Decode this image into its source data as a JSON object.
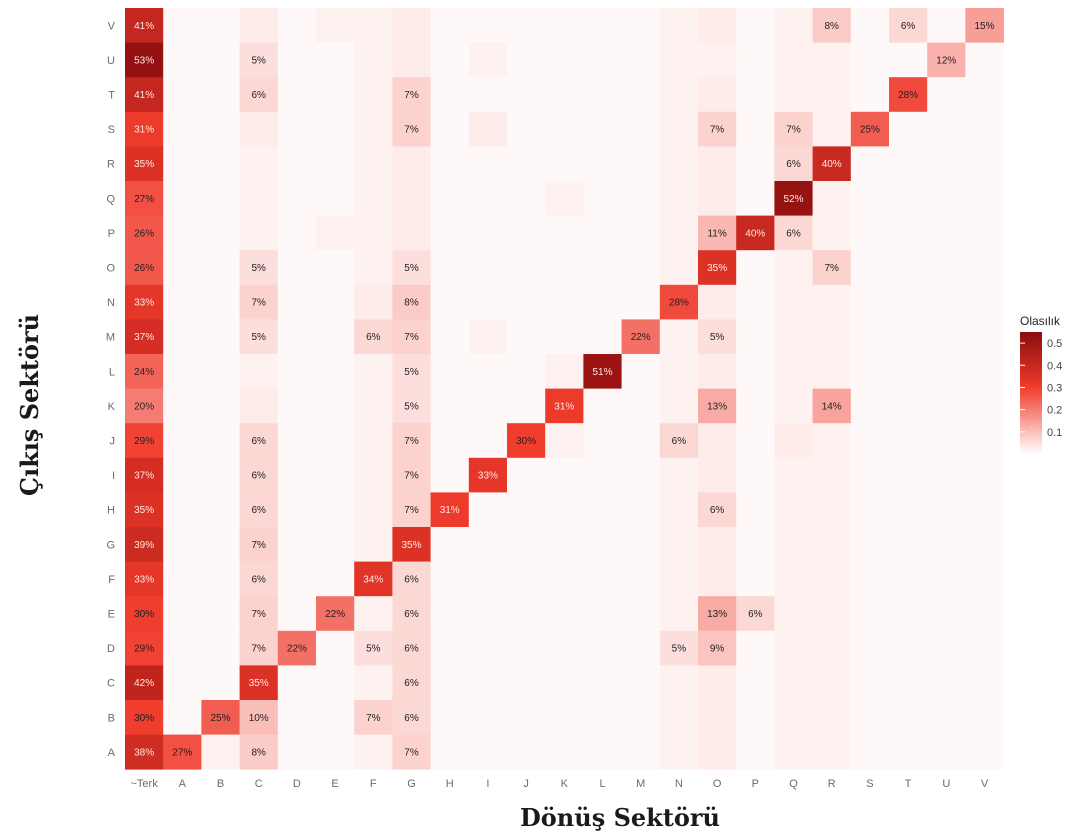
{
  "chart_data": {
    "type": "heatmap",
    "xlabel": "Dönüş Sektörü",
    "ylabel": "Çıkış Sektörü",
    "x_categories": [
      "~Terk",
      "A",
      "B",
      "C",
      "D",
      "E",
      "F",
      "G",
      "H",
      "I",
      "J",
      "K",
      "L",
      "M",
      "N",
      "O",
      "P",
      "Q",
      "R",
      "S",
      "T",
      "U",
      "V"
    ],
    "y_categories": [
      "A",
      "B",
      "C",
      "D",
      "E",
      "F",
      "G",
      "H",
      "I",
      "J",
      "K",
      "L",
      "M",
      "N",
      "O",
      "P",
      "Q",
      "R",
      "S",
      "T",
      "U",
      "V"
    ],
    "color_range": [
      0,
      0.55
    ],
    "colors": {
      "low": "#ffffff",
      "mid": "#ef3b2c",
      "high": "#8b0d0d"
    },
    "legend": {
      "title": "Olasılık",
      "ticks": [
        "0.1",
        "0.2",
        "0.3",
        "0.4",
        "0.5"
      ],
      "tick_values": [
        0.1,
        0.2,
        0.3,
        0.4,
        0.5
      ],
      "position": "right"
    },
    "values": [
      [
        0.38,
        0.27,
        0.02,
        0.08,
        0.01,
        0.01,
        0.02,
        0.07,
        0.01,
        0.01,
        0.01,
        0.01,
        0.01,
        0.01,
        0.02,
        0.03,
        0.01,
        0.02,
        0.02,
        0.01,
        0.01,
        0.01,
        0.01
      ],
      [
        0.3,
        0.01,
        0.25,
        0.1,
        0.01,
        0.01,
        0.07,
        0.06,
        0.01,
        0.01,
        0.01,
        0.01,
        0.01,
        0.01,
        0.02,
        0.03,
        0.01,
        0.02,
        0.02,
        0.01,
        0.01,
        0.01,
        0.01
      ],
      [
        0.42,
        0.01,
        0.01,
        0.35,
        0.01,
        0.01,
        0.02,
        0.06,
        0.01,
        0.01,
        0.01,
        0.01,
        0.01,
        0.01,
        0.02,
        0.03,
        0.01,
        0.02,
        0.02,
        0.01,
        0.01,
        0.01,
        0.01
      ],
      [
        0.29,
        0.01,
        0.01,
        0.07,
        0.22,
        0.01,
        0.05,
        0.06,
        0.01,
        0.01,
        0.01,
        0.01,
        0.01,
        0.01,
        0.05,
        0.09,
        0.01,
        0.02,
        0.02,
        0.01,
        0.01,
        0.01,
        0.01
      ],
      [
        0.3,
        0.01,
        0.01,
        0.07,
        0.01,
        0.22,
        0.02,
        0.06,
        0.01,
        0.01,
        0.01,
        0.01,
        0.01,
        0.01,
        0.02,
        0.13,
        0.06,
        0.02,
        0.02,
        0.01,
        0.01,
        0.01,
        0.01
      ],
      [
        0.33,
        0.01,
        0.01,
        0.06,
        0.01,
        0.01,
        0.34,
        0.06,
        0.01,
        0.01,
        0.01,
        0.01,
        0.01,
        0.01,
        0.02,
        0.03,
        0.01,
        0.02,
        0.02,
        0.01,
        0.01,
        0.01,
        0.01
      ],
      [
        0.39,
        0.01,
        0.01,
        0.07,
        0.01,
        0.01,
        0.02,
        0.35,
        0.01,
        0.01,
        0.01,
        0.01,
        0.01,
        0.01,
        0.02,
        0.03,
        0.01,
        0.02,
        0.02,
        0.01,
        0.01,
        0.01,
        0.01
      ],
      [
        0.35,
        0.01,
        0.01,
        0.06,
        0.01,
        0.01,
        0.02,
        0.07,
        0.31,
        0.01,
        0.01,
        0.01,
        0.01,
        0.01,
        0.02,
        0.06,
        0.01,
        0.02,
        0.02,
        0.01,
        0.01,
        0.01,
        0.01
      ],
      [
        0.37,
        0.01,
        0.01,
        0.06,
        0.01,
        0.01,
        0.02,
        0.07,
        0.01,
        0.33,
        0.01,
        0.01,
        0.01,
        0.01,
        0.02,
        0.03,
        0.01,
        0.02,
        0.02,
        0.01,
        0.01,
        0.01,
        0.01
      ],
      [
        0.29,
        0.01,
        0.01,
        0.06,
        0.01,
        0.01,
        0.02,
        0.07,
        0.01,
        0.01,
        0.3,
        0.02,
        0.01,
        0.01,
        0.06,
        0.03,
        0.01,
        0.03,
        0.02,
        0.01,
        0.01,
        0.01,
        0.01
      ],
      [
        0.2,
        0.01,
        0.01,
        0.03,
        0.01,
        0.01,
        0.02,
        0.05,
        0.01,
        0.01,
        0.01,
        0.31,
        0.01,
        0.01,
        0.02,
        0.13,
        0.01,
        0.02,
        0.14,
        0.01,
        0.01,
        0.01,
        0.01
      ],
      [
        0.24,
        0.01,
        0.01,
        0.02,
        0.01,
        0.01,
        0.02,
        0.05,
        0.01,
        0.01,
        0.01,
        0.02,
        0.51,
        0.01,
        0.02,
        0.03,
        0.01,
        0.02,
        0.02,
        0.01,
        0.01,
        0.01,
        0.01
      ],
      [
        0.37,
        0.01,
        0.01,
        0.05,
        0.01,
        0.01,
        0.06,
        0.07,
        0.01,
        0.02,
        0.01,
        0.01,
        0.01,
        0.22,
        0.02,
        0.05,
        0.01,
        0.02,
        0.02,
        0.01,
        0.01,
        0.01,
        0.01
      ],
      [
        0.33,
        0.01,
        0.01,
        0.07,
        0.01,
        0.01,
        0.03,
        0.08,
        0.01,
        0.01,
        0.01,
        0.01,
        0.01,
        0.01,
        0.28,
        0.03,
        0.01,
        0.02,
        0.02,
        0.01,
        0.01,
        0.01,
        0.01
      ],
      [
        0.26,
        0.01,
        0.01,
        0.05,
        0.01,
        0.01,
        0.02,
        0.05,
        0.01,
        0.01,
        0.01,
        0.01,
        0.01,
        0.01,
        0.02,
        0.35,
        0.01,
        0.02,
        0.07,
        0.01,
        0.01,
        0.01,
        0.01
      ],
      [
        0.26,
        0.01,
        0.01,
        0.02,
        0.01,
        0.02,
        0.02,
        0.03,
        0.01,
        0.01,
        0.01,
        0.01,
        0.01,
        0.01,
        0.02,
        0.11,
        0.4,
        0.06,
        0.02,
        0.01,
        0.01,
        0.01,
        0.01
      ],
      [
        0.27,
        0.01,
        0.01,
        0.02,
        0.01,
        0.01,
        0.02,
        0.03,
        0.01,
        0.01,
        0.01,
        0.02,
        0.01,
        0.01,
        0.02,
        0.03,
        0.01,
        0.52,
        0.02,
        0.01,
        0.01,
        0.01,
        0.01
      ],
      [
        0.35,
        0.01,
        0.01,
        0.02,
        0.01,
        0.01,
        0.02,
        0.03,
        0.01,
        0.01,
        0.01,
        0.01,
        0.01,
        0.01,
        0.02,
        0.03,
        0.01,
        0.06,
        0.4,
        0.01,
        0.01,
        0.01,
        0.01
      ],
      [
        0.31,
        0.01,
        0.01,
        0.03,
        0.01,
        0.01,
        0.02,
        0.07,
        0.01,
        0.03,
        0.01,
        0.01,
        0.01,
        0.01,
        0.02,
        0.07,
        0.01,
        0.07,
        0.02,
        0.25,
        0.01,
        0.01,
        0.01
      ],
      [
        0.41,
        0.01,
        0.01,
        0.06,
        0.01,
        0.01,
        0.02,
        0.07,
        0.01,
        0.01,
        0.01,
        0.01,
        0.01,
        0.01,
        0.02,
        0.03,
        0.01,
        0.02,
        0.02,
        0.01,
        0.28,
        0.01,
        0.01
      ],
      [
        0.53,
        0.01,
        0.01,
        0.05,
        0.01,
        0.01,
        0.02,
        0.03,
        0.01,
        0.02,
        0.01,
        0.01,
        0.01,
        0.01,
        0.02,
        0.02,
        0.01,
        0.02,
        0.02,
        0.01,
        0.01,
        0.12,
        0.01
      ],
      [
        0.41,
        0.01,
        0.01,
        0.03,
        0.01,
        0.02,
        0.02,
        0.03,
        0.01,
        0.01,
        0.01,
        0.01,
        0.01,
        0.01,
        0.02,
        0.03,
        0.01,
        0.02,
        0.08,
        0.01,
        0.06,
        0.01,
        0.15
      ]
    ],
    "labels": [
      [
        "38%",
        "27%",
        "",
        "8%",
        "",
        "",
        "",
        "7%",
        "",
        "",
        "",
        "",
        "",
        "",
        "",
        "",
        "",
        "",
        "",
        "",
        "",
        "",
        ""
      ],
      [
        "30%",
        "",
        "25%",
        "10%",
        "",
        "",
        "7%",
        "6%",
        "",
        "",
        "",
        "",
        "",
        "",
        "",
        "",
        "",
        "",
        "",
        "",
        "",
        "",
        ""
      ],
      [
        "42%",
        "",
        "",
        "35%",
        "",
        "",
        "",
        "6%",
        "",
        "",
        "",
        "",
        "",
        "",
        "",
        "",
        "",
        "",
        "",
        "",
        "",
        "",
        ""
      ],
      [
        "29%",
        "",
        "",
        "7%",
        "22%",
        "",
        "5%",
        "6%",
        "",
        "",
        "",
        "",
        "",
        "",
        "5%",
        "9%",
        "",
        "",
        "",
        "",
        "",
        "",
        ""
      ],
      [
        "30%",
        "",
        "",
        "7%",
        "",
        "22%",
        "",
        "6%",
        "",
        "",
        "",
        "",
        "",
        "",
        "",
        "13%",
        "6%",
        "",
        "",
        "",
        "",
        "",
        ""
      ],
      [
        "33%",
        "",
        "",
        "6%",
        "",
        "",
        "34%",
        "6%",
        "",
        "",
        "",
        "",
        "",
        "",
        "",
        "",
        "",
        "",
        "",
        "",
        "",
        "",
        ""
      ],
      [
        "39%",
        "",
        "",
        "7%",
        "",
        "",
        "",
        "35%",
        "",
        "",
        "",
        "",
        "",
        "",
        "",
        "",
        "",
        "",
        "",
        "",
        "",
        "",
        ""
      ],
      [
        "35%",
        "",
        "",
        "6%",
        "",
        "",
        "",
        "7%",
        "31%",
        "",
        "",
        "",
        "",
        "",
        "",
        "6%",
        "",
        "",
        "",
        "",
        "",
        "",
        ""
      ],
      [
        "37%",
        "",
        "",
        "6%",
        "",
        "",
        "",
        "7%",
        "",
        "33%",
        "",
        "",
        "",
        "",
        "",
        "",
        "",
        "",
        "",
        "",
        "",
        "",
        ""
      ],
      [
        "29%",
        "",
        "",
        "6%",
        "",
        "",
        "",
        "7%",
        "",
        "",
        "30%",
        "",
        "",
        "",
        "6%",
        "",
        "",
        "",
        "",
        "",
        "",
        "",
        ""
      ],
      [
        "20%",
        "",
        "",
        "",
        "",
        "",
        "",
        "5%",
        "",
        "",
        "",
        "31%",
        "",
        "",
        "",
        "13%",
        "",
        "",
        "14%",
        "",
        "",
        "",
        ""
      ],
      [
        "24%",
        "",
        "",
        "",
        "",
        "",
        "",
        "5%",
        "",
        "",
        "",
        "",
        "51%",
        "",
        "",
        "",
        "",
        "",
        "",
        "",
        "",
        "",
        ""
      ],
      [
        "37%",
        "",
        "",
        "5%",
        "",
        "",
        "6%",
        "7%",
        "",
        "",
        "",
        "",
        "",
        "22%",
        "",
        "5%",
        "",
        "",
        "",
        "",
        "",
        "",
        ""
      ],
      [
        "33%",
        "",
        "",
        "7%",
        "",
        "",
        "",
        "8%",
        "",
        "",
        "",
        "",
        "",
        "",
        "28%",
        "",
        "",
        "",
        "",
        "",
        "",
        "",
        ""
      ],
      [
        "26%",
        "",
        "",
        "5%",
        "",
        "",
        "",
        "5%",
        "",
        "",
        "",
        "",
        "",
        "",
        "",
        "35%",
        "",
        "",
        "7%",
        "",
        "",
        "",
        ""
      ],
      [
        "26%",
        "",
        "",
        "",
        "",
        "",
        "",
        "",
        "",
        "",
        "",
        "",
        "",
        "",
        "",
        "11%",
        "40%",
        "6%",
        "",
        "",
        "",
        "",
        ""
      ],
      [
        "27%",
        "",
        "",
        "",
        "",
        "",
        "",
        "",
        "",
        "",
        "",
        "",
        "",
        "",
        "",
        "",
        "",
        "52%",
        "",
        "",
        "",
        "",
        ""
      ],
      [
        "35%",
        "",
        "",
        "",
        "",
        "",
        "",
        "",
        "",
        "",
        "",
        "",
        "",
        "",
        "",
        "",
        "",
        "6%",
        "40%",
        "",
        "",
        "",
        ""
      ],
      [
        "31%",
        "",
        "",
        "",
        "",
        "",
        "",
        "7%",
        "",
        "",
        "",
        "",
        "",
        "",
        "",
        "7%",
        "",
        "7%",
        "",
        "25%",
        "",
        "",
        ""
      ],
      [
        "41%",
        "",
        "",
        "6%",
        "",
        "",
        "",
        "7%",
        "",
        "",
        "",
        "",
        "",
        "",
        "",
        "",
        "",
        "",
        "",
        "",
        "28%",
        "",
        ""
      ],
      [
        "53%",
        "",
        "",
        "5%",
        "",
        "",
        "",
        "",
        "",
        "",
        "",
        "",
        "",
        "",
        "",
        "",
        "",
        "",
        "",
        "",
        "",
        "12%",
        ""
      ],
      [
        "41%",
        "",
        "",
        "",
        "",
        "",
        "",
        "",
        "",
        "",
        "",
        "",
        "",
        "",
        "",
        "",
        "",
        "",
        "8%",
        "",
        "6%",
        "",
        "15%"
      ]
    ]
  }
}
